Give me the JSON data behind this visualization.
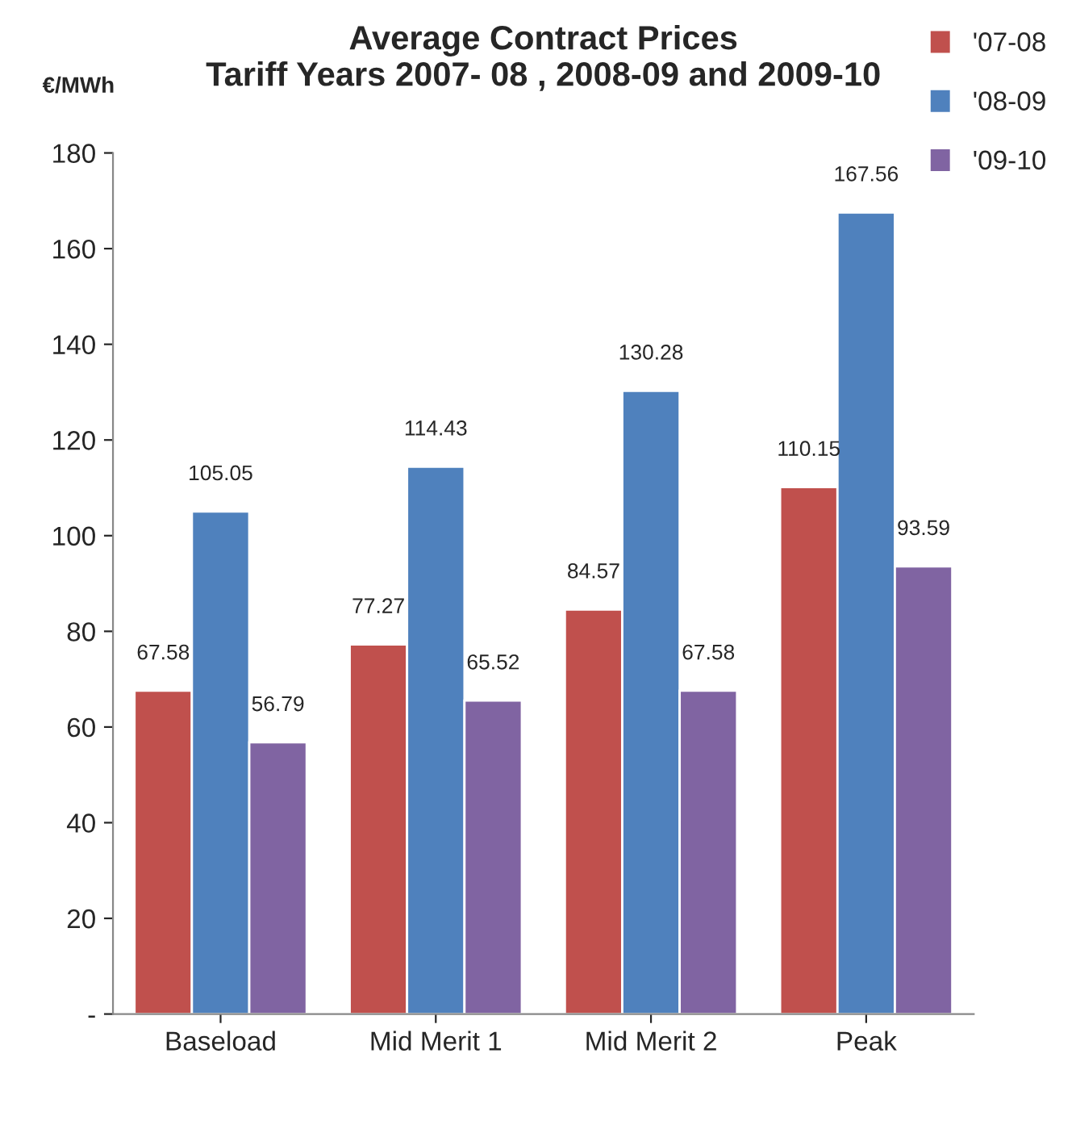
{
  "chart_data": {
    "type": "bar",
    "title": "Average Contract Prices\nTariff Years 2007- 08 , 2008-09 and 2009-10",
    "ylabel": "€/MWh",
    "categories": [
      "Baseload",
      "Mid Merit 1",
      "Mid Merit 2",
      "Peak"
    ],
    "series": [
      {
        "name": "'07-08",
        "color": "#c0504d",
        "values": [
          67.58,
          77.27,
          84.57,
          110.15
        ]
      },
      {
        "name": "'08-09",
        "color": "#4f81bd",
        "values": [
          105.05,
          114.43,
          130.28,
          167.56
        ]
      },
      {
        "name": "'09-10",
        "color": "#8064a2",
        "values": [
          56.79,
          65.52,
          67.58,
          93.59
        ]
      }
    ],
    "ylim": [
      0,
      180
    ],
    "yticks": [
      {
        "value": 0,
        "label": "-"
      },
      20,
      40,
      60,
      80,
      100,
      120,
      140,
      160,
      180
    ],
    "data_labels": true,
    "grid": false,
    "legend": "top right"
  }
}
